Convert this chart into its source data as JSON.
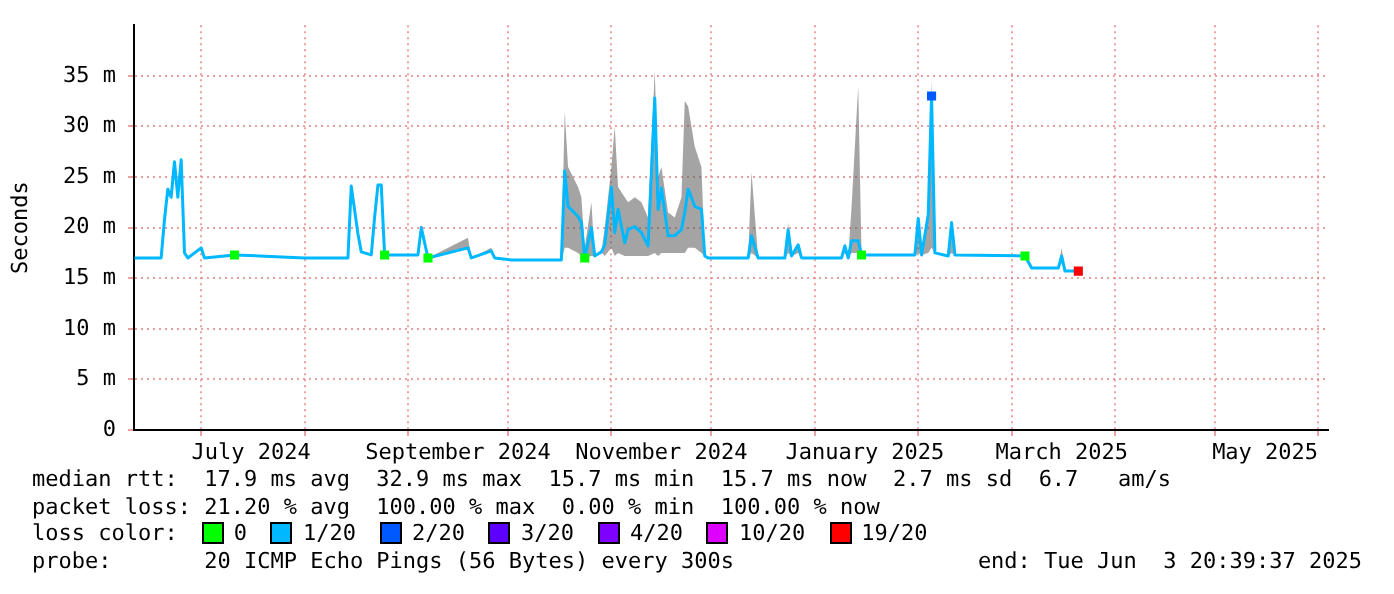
{
  "chart_data": {
    "type": "line",
    "ylabel": "Seconds",
    "legend_title": "loss color:",
    "legend": "bottom",
    "grid": true,
    "xlim": [
      "2024-06-10T20:39",
      "2025-06-03T20:39"
    ],
    "xticks": [
      {
        "value": "2024-07-01",
        "label": null
      },
      {
        "value": "2024-07-16",
        "label": "July 2024"
      },
      {
        "value": "2024-08-01",
        "label": null
      },
      {
        "value": "2024-09-01",
        "label": null
      },
      {
        "value": "2024-09-16",
        "label": "September 2024"
      },
      {
        "value": "2024-10-01",
        "label": null
      },
      {
        "value": "2024-11-01",
        "label": null
      },
      {
        "value": "2024-11-16",
        "label": "November 2024"
      },
      {
        "value": "2024-12-01",
        "label": null
      },
      {
        "value": "2025-01-01",
        "label": null
      },
      {
        "value": "2025-01-16",
        "label": "January 2025"
      },
      {
        "value": "2025-02-01",
        "label": null
      },
      {
        "value": "2025-03-01",
        "label": null
      },
      {
        "value": "2025-03-16",
        "label": "March 2025"
      },
      {
        "value": "2025-04-01",
        "label": null
      },
      {
        "value": "2025-05-01",
        "label": null
      },
      {
        "value": "2025-05-16",
        "label": "May 2025"
      },
      {
        "value": "2025-06-01",
        "label": null
      }
    ],
    "ylim": [
      0,
      40
    ],
    "yticks": [
      0,
      {
        "value": 5,
        "label": "5 m"
      },
      {
        "value": 10,
        "label": "10 m"
      },
      {
        "value": 15,
        "label": "15 m"
      },
      {
        "value": 20,
        "label": "20 m"
      },
      {
        "value": 25,
        "label": "25 m"
      },
      {
        "value": 30,
        "label": "30 m"
      },
      {
        "value": 35,
        "label": "35 m"
      }
    ],
    "annotations": [
      "median rtt:  17.9 ms avg  32.9 ms max  15.7 ms min  15.7 ms now  2.7 ms sd  6.7   am/s",
      "packet loss: 21.20 % avg  100.00 % max  0.00 % min  100.00 % now",
      "probe:       20 ICMP Echo Pings (56 Bytes) every 300s",
      "end: Tue Jun  3 20:39:37 2025"
    ],
    "x": [
      "2024-06-11",
      "2024-06-19",
      "2024-06-20",
      "2024-06-21",
      "2024-06-22",
      "2024-06-23",
      "2024-06-24",
      "2024-06-25",
      "2024-06-26",
      "2024-06-27",
      "2024-07-01",
      "2024-07-02",
      "2024-07-11",
      "2024-08-01",
      "2024-08-14",
      "2024-08-15",
      "2024-08-17",
      "2024-08-18",
      "2024-08-21",
      "2024-08-22",
      "2024-08-23",
      "2024-08-24",
      "2024-08-25",
      "2024-09-04",
      "2024-09-05",
      "2024-09-07",
      "2024-09-19",
      "2024-09-20",
      "2024-09-26",
      "2024-09-27",
      "2024-10-02",
      "2024-10-17",
      "2024-10-18",
      "2024-10-19",
      "2024-10-22",
      "2024-10-23",
      "2024-10-24",
      "2024-10-26",
      "2024-10-27",
      "2024-10-29",
      "2024-10-30",
      "2024-11-01",
      "2024-11-02",
      "2024-11-03",
      "2024-11-05",
      "2024-11-06",
      "2024-11-08",
      "2024-11-10",
      "2024-11-12",
      "2024-11-14",
      "2024-11-15",
      "2024-11-16",
      "2024-11-18",
      "2024-11-20",
      "2024-11-22",
      "2024-11-23",
      "2024-11-24",
      "2024-11-26",
      "2024-11-28",
      "2024-11-29",
      "2024-11-30",
      "2024-12-12",
      "2024-12-13",
      "2024-12-15",
      "2024-12-23",
      "2024-12-24",
      "2024-12-25",
      "2024-12-27",
      "2024-12-28",
      "2025-01-09",
      "2025-01-10",
      "2025-01-11",
      "2025-01-12",
      "2025-01-14",
      "2025-01-15",
      "2025-01-31",
      "2025-02-01",
      "2025-02-02",
      "2025-02-04",
      "2025-02-05",
      "2025-02-06",
      "2025-02-10",
      "2025-02-11",
      "2025-02-12",
      "2025-03-05",
      "2025-03-07",
      "2025-03-15",
      "2025-03-16",
      "2025-03-17",
      "2025-03-21"
    ],
    "series": [
      {
        "name": "0",
        "type": "scatter",
        "marker": "square",
        "color": "#00ff00",
        "x": [
          "2024-07-11",
          "2024-08-25",
          "2024-09-07",
          "2024-10-24",
          "2025-01-15",
          "2025-03-05"
        ],
        "values": [
          17.3,
          17.3,
          17.0,
          17.0,
          17.3,
          17.2
        ]
      },
      {
        "name": "1/20",
        "marker": "none",
        "color": "#00b8ff",
        "values": [
          17.0,
          17.0,
          20.8,
          23.8,
          23.0,
          26.5,
          23.0,
          26.7,
          17.5,
          17.0,
          18.0,
          17.0,
          17.3,
          17.0,
          17.0,
          24.1,
          19.4,
          17.6,
          17.3,
          21.0,
          24.2,
          24.2,
          17.3,
          17.3,
          20.0,
          17.0,
          18.0,
          17.0,
          17.7,
          17.0,
          16.8,
          16.8,
          25.6,
          22.1,
          21.1,
          20.5,
          17.0,
          20.0,
          17.2,
          17.6,
          18.3,
          24.0,
          19.5,
          21.8,
          18.5,
          19.8,
          20.1,
          19.5,
          18.2,
          32.8,
          21.8,
          23.9,
          19.2,
          19.2,
          19.8,
          21.5,
          23.8,
          22.1,
          21.8,
          17.2,
          17.0,
          17.0,
          19.2,
          17.0,
          17.0,
          19.8,
          17.2,
          18.3,
          17.0,
          17.0,
          18.2,
          17.0,
          18.7,
          18.7,
          17.3,
          17.3,
          20.9,
          17.3,
          21.3,
          33.0,
          17.5,
          17.2,
          20.5,
          17.3,
          17.2,
          16.0,
          16.0,
          17.2,
          15.7,
          15.7
        ],
        "lower": [
          17.0,
          17.0,
          20.8,
          23.8,
          23.0,
          26.5,
          23.0,
          26.7,
          17.5,
          17.0,
          18.0,
          17.0,
          17.3,
          17.0,
          17.0,
          24.1,
          19.4,
          17.6,
          17.3,
          21.0,
          24.2,
          24.2,
          17.3,
          17.3,
          20.0,
          17.0,
          18.0,
          17.0,
          17.7,
          17.0,
          16.8,
          16.8,
          18.0,
          18.0,
          17.5,
          17.2,
          17.0,
          17.2,
          17.2,
          17.6,
          17.2,
          18.0,
          17.2,
          17.5,
          17.2,
          17.2,
          17.2,
          17.2,
          17.2,
          17.5,
          17.2,
          17.5,
          17.5,
          17.5,
          17.5,
          17.5,
          18.0,
          18.0,
          17.5,
          17.2,
          17.0,
          17.0,
          17.5,
          17.0,
          17.0,
          17.5,
          17.2,
          17.5,
          17.0,
          17.0,
          17.5,
          17.0,
          17.5,
          17.5,
          17.3,
          17.3,
          17.5,
          17.3,
          17.5,
          18.0,
          17.5,
          17.2,
          17.5,
          17.3,
          17.2,
          16.0,
          16.0,
          16.5,
          15.7,
          15.7
        ],
        "upper": [
          17.0,
          17.0,
          20.8,
          23.8,
          23.0,
          26.5,
          23.0,
          26.7,
          17.5,
          17.0,
          18.0,
          17.0,
          17.3,
          17.0,
          17.0,
          24.1,
          19.4,
          17.6,
          17.3,
          21.0,
          24.2,
          24.2,
          17.3,
          17.3,
          20.0,
          17.0,
          19.0,
          17.0,
          18.0,
          17.0,
          16.8,
          16.8,
          31.5,
          26.0,
          24.0,
          23.0,
          18.0,
          22.5,
          17.2,
          17.6,
          20.0,
          26.0,
          30.0,
          24.0,
          23.0,
          22.5,
          23.0,
          22.5,
          21.0,
          35.5,
          25.0,
          26.0,
          21.5,
          21.0,
          23.0,
          32.5,
          32.0,
          28.0,
          26.0,
          17.2,
          17.0,
          17.0,
          25.5,
          17.0,
          17.0,
          20.5,
          17.2,
          18.3,
          17.0,
          17.0,
          18.2,
          17.0,
          22.0,
          34.0,
          17.3,
          17.3,
          20.9,
          17.3,
          21.3,
          34.5,
          17.5,
          17.2,
          20.5,
          17.3,
          17.2,
          16.0,
          16.0,
          18.0,
          15.7,
          15.7
        ]
      },
      {
        "name": "2/20",
        "type": "scatter",
        "marker": "square",
        "color": "#0059ff",
        "x": [
          "2025-02-05"
        ],
        "values": [
          33.0
        ]
      },
      {
        "name": "3/20",
        "type": "scatter",
        "marker": "square",
        "color": "#5e00ff",
        "values": [
          null,
          null,
          null,
          null,
          null,
          null,
          null,
          null,
          null,
          null,
          null,
          null,
          null,
          null,
          null,
          null,
          null,
          null,
          null,
          null,
          null,
          null,
          null,
          null,
          null,
          null,
          null,
          null,
          null,
          null,
          null,
          null,
          null,
          null,
          null,
          null,
          null,
          null,
          null,
          null,
          null,
          null,
          null,
          null,
          null,
          null,
          null,
          null,
          null,
          null,
          null,
          null,
          null,
          null,
          null,
          null,
          null,
          null,
          null,
          null,
          null,
          null,
          null,
          null,
          null,
          null,
          null,
          null,
          null,
          null,
          null,
          null,
          null,
          null,
          null,
          null,
          null,
          null,
          null,
          null,
          null,
          null,
          null,
          null,
          null,
          null,
          null,
          null,
          null,
          null
        ]
      },
      {
        "name": "4/20",
        "type": "scatter",
        "marker": "square",
        "color": "#7e00ff",
        "values": [
          null,
          null,
          null,
          null,
          null,
          null,
          null,
          null,
          null,
          null,
          null,
          null,
          null,
          null,
          null,
          null,
          null,
          null,
          null,
          null,
          null,
          null,
          null,
          null,
          null,
          null,
          null,
          null,
          null,
          null,
          null,
          null,
          null,
          null,
          null,
          null,
          null,
          null,
          null,
          null,
          null,
          null,
          null,
          null,
          null,
          null,
          null,
          null,
          null,
          null,
          null,
          null,
          null,
          null,
          null,
          null,
          null,
          null,
          null,
          null,
          null,
          null,
          null,
          null,
          null,
          null,
          null,
          null,
          null,
          null,
          null,
          null,
          null,
          null,
          null,
          null,
          null,
          null,
          null,
          null,
          null,
          null,
          null,
          null,
          null,
          null,
          null,
          null,
          null,
          null
        ]
      },
      {
        "name": "10/20",
        "type": "scatter",
        "marker": "square",
        "color": "#dd00ff",
        "values": [
          null,
          null,
          null,
          null,
          null,
          null,
          null,
          null,
          null,
          null,
          null,
          null,
          null,
          null,
          null,
          null,
          null,
          null,
          null,
          null,
          null,
          null,
          null,
          null,
          null,
          null,
          null,
          null,
          null,
          null,
          null,
          null,
          null,
          null,
          null,
          null,
          null,
          null,
          null,
          null,
          null,
          null,
          null,
          null,
          null,
          null,
          null,
          null,
          null,
          null,
          null,
          null,
          null,
          null,
          null,
          null,
          null,
          null,
          null,
          null,
          null,
          null,
          null,
          null,
          null,
          null,
          null,
          null,
          null,
          null,
          null,
          null,
          null,
          null,
          null,
          null,
          null,
          null,
          null,
          null,
          null,
          null,
          null,
          null,
          null,
          null,
          null,
          null,
          null,
          null
        ]
      },
      {
        "name": "19/20",
        "type": "scatter",
        "marker": "square",
        "color": "#ff0000",
        "x": [
          "2025-03-21"
        ],
        "values": [
          15.7
        ]
      }
    ]
  }
}
